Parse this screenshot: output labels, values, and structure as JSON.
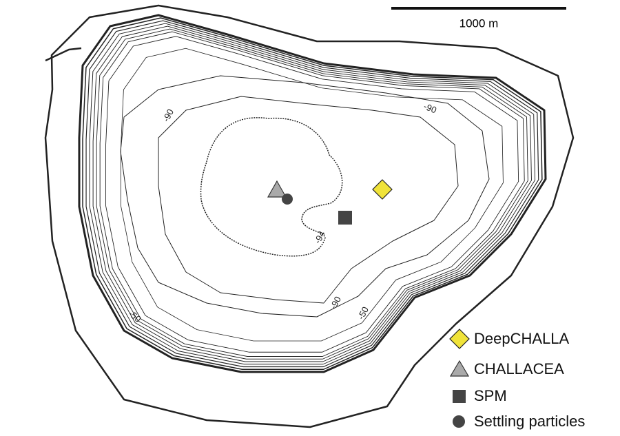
{
  "scale_bar": {
    "label": "1000 m"
  },
  "contour_labels": [
    "-90",
    "-90",
    "-90",
    "-94",
    "-50",
    "-50"
  ],
  "legend": [
    "DeepCHALLA",
    "CHALLACEA",
    "SPM",
    "Settling particles"
  ]
}
